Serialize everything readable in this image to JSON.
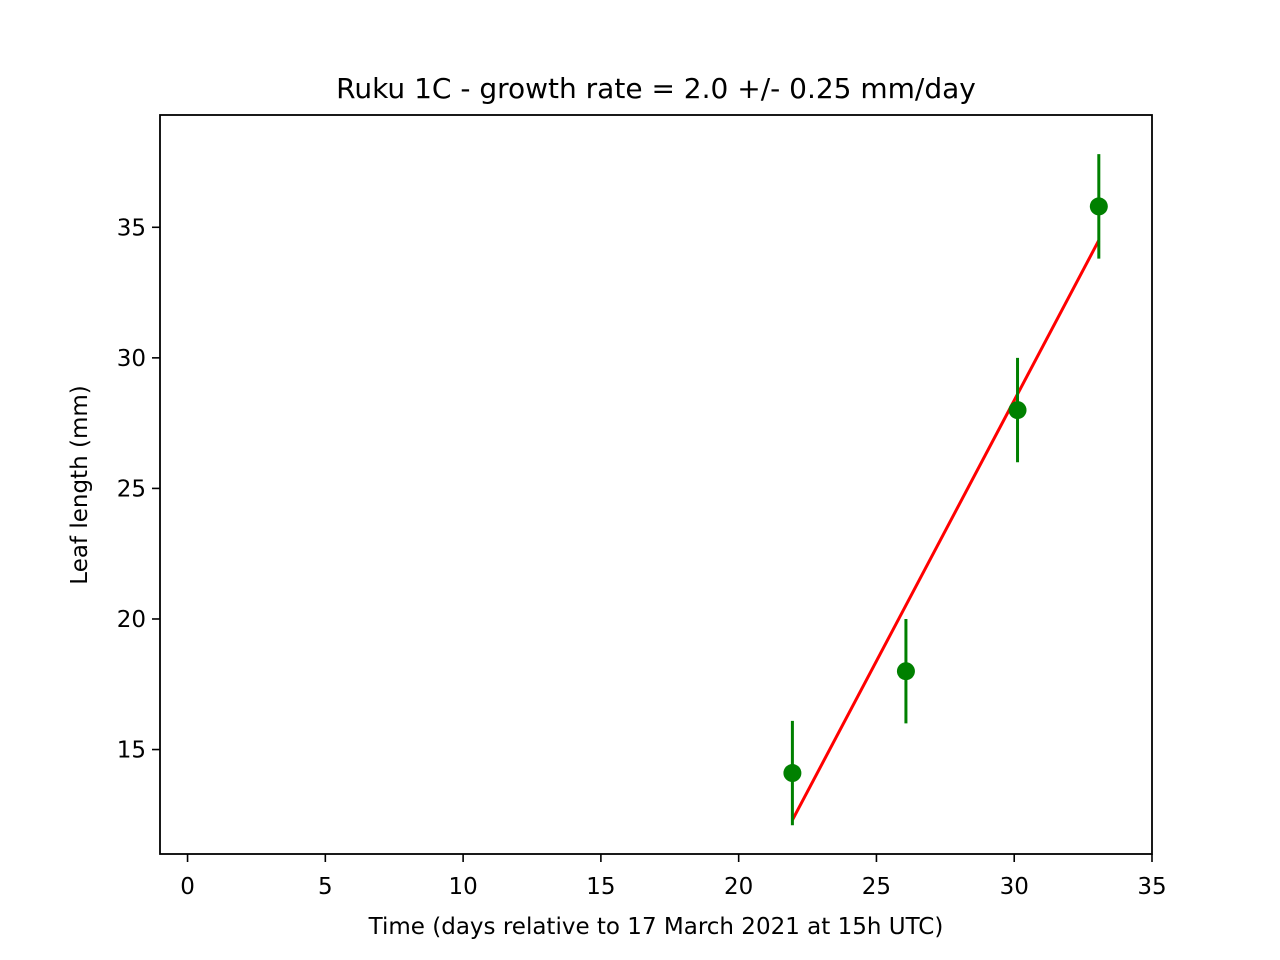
{
  "chart_data": {
    "type": "scatter",
    "title": "Ruku 1C  -  growth rate =  2.0 +/- 0.25 mm/day",
    "xlabel": "Time (days relative to 17 March 2021 at 15h UTC)",
    "ylabel": "Leaf length (mm)",
    "xlim": [
      -1,
      35
    ],
    "ylim": [
      11,
      39.3
    ],
    "x_ticks": [
      0,
      5,
      10,
      15,
      20,
      25,
      30,
      35
    ],
    "y_ticks": [
      15,
      20,
      25,
      30,
      35
    ],
    "grid": false,
    "series": [
      {
        "kind": "errorbar",
        "color": "#008000",
        "points": [
          {
            "x": 21.95,
            "y": 14.1,
            "yerr": 2.0
          },
          {
            "x": 26.07,
            "y": 18.0,
            "yerr": 2.0
          },
          {
            "x": 30.12,
            "y": 28.0,
            "yerr": 2.0
          },
          {
            "x": 33.07,
            "y": 35.8,
            "yerr": 2.0
          }
        ]
      },
      {
        "kind": "fit-line",
        "color": "#ff0000",
        "points": [
          {
            "x": 21.95,
            "y": 12.3
          },
          {
            "x": 33.07,
            "y": 34.5
          }
        ]
      }
    ]
  }
}
